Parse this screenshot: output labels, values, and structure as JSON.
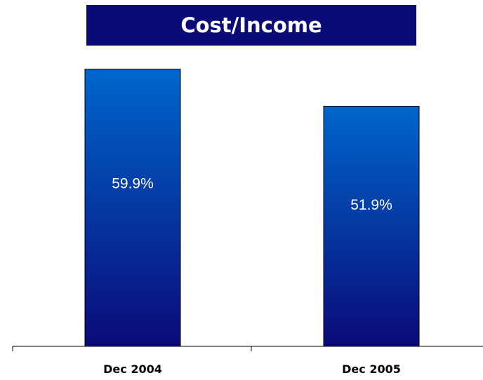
{
  "chart_data": {
    "type": "bar",
    "title": "Cost/Income",
    "categories": [
      "Dec 2004",
      "Dec 2005"
    ],
    "values": [
      59.9,
      51.9
    ],
    "value_labels": [
      "59.9%",
      "51.9%"
    ],
    "xlabel": "",
    "ylabel": "",
    "ylim": [
      0,
      65
    ],
    "grid": false,
    "bar_color_top": "#0066cc",
    "bar_color_bottom": "#0a0a78",
    "title_bg": "#0a0a78"
  }
}
